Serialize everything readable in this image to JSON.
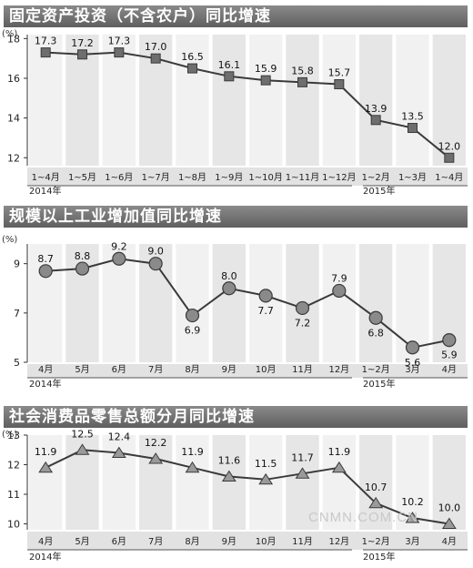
{
  "chart_data": [
    {
      "type": "line",
      "title": "固定资产投资（不含农户）同比增速",
      "unit": "(%)",
      "categories": [
        "1~4月",
        "1~5月",
        "1~6月",
        "1~7月",
        "1~8月",
        "1~9月",
        "1~10月",
        "1~11月",
        "1~12月",
        "1~2月",
        "1~3月",
        "1~4月"
      ],
      "year_labels": [
        "2014年",
        "2015年"
      ],
      "values": [
        17.3,
        17.2,
        17.3,
        17.0,
        16.5,
        16.1,
        15.9,
        15.8,
        15.7,
        13.9,
        13.5,
        12.0
      ],
      "value_labels": [
        "17.3",
        "17.2",
        "17.3",
        "17.0",
        "16.5",
        "16.1",
        "15.9",
        "15.8",
        "15.7",
        "13.9",
        "13.5",
        "12.0"
      ],
      "yticks": [
        "12",
        "14",
        "16",
        "18"
      ],
      "ylim": [
        11.6,
        18.2
      ],
      "marker": "square",
      "grid": true
    },
    {
      "type": "line",
      "title": "规模以上工业增加值同比增速",
      "unit": "(%)",
      "categories": [
        "4月",
        "5月",
        "6月",
        "7月",
        "8月",
        "9月",
        "10月",
        "11月",
        "12月",
        "1~2月",
        "3月",
        "4月"
      ],
      "year_labels": [
        "2014年",
        "2015年"
      ],
      "values": [
        8.7,
        8.8,
        9.2,
        9.0,
        6.9,
        8.0,
        7.7,
        7.2,
        7.9,
        6.8,
        5.6,
        5.9
      ],
      "value_labels": [
        "8.7",
        "8.8",
        "9.2",
        "9.0",
        "6.9",
        "8.0",
        "7.7",
        "7.2",
        "7.9",
        "6.8",
        "5.6",
        "5.9"
      ],
      "yticks": [
        "5",
        "7",
        "9"
      ],
      "ylim": [
        5.0,
        9.8
      ],
      "marker": "circle",
      "grid": true
    },
    {
      "type": "line",
      "title": "社会消费品零售总额分月同比增速",
      "unit": "(%)",
      "categories": [
        "4月",
        "5月",
        "6月",
        "7月",
        "8月",
        "9月",
        "10月",
        "11月",
        "12月",
        "1~2月",
        "3月",
        "4月"
      ],
      "year_labels": [
        "2014年",
        "2015年"
      ],
      "values": [
        11.9,
        12.5,
        12.4,
        12.2,
        11.9,
        11.6,
        11.5,
        11.7,
        11.9,
        10.7,
        10.2,
        10.0
      ],
      "value_labels": [
        "11.9",
        "12.5",
        "12.4",
        "12.2",
        "11.9",
        "11.6",
        "11.5",
        "11.7",
        "11.9",
        "10.7",
        "10.2",
        "10.0"
      ],
      "yticks": [
        "10",
        "11",
        "12",
        "13"
      ],
      "ylim": [
        9.8,
        13.0
      ],
      "marker": "triangle",
      "grid": true
    }
  ],
  "watermark": "CNMN.COM.CN"
}
